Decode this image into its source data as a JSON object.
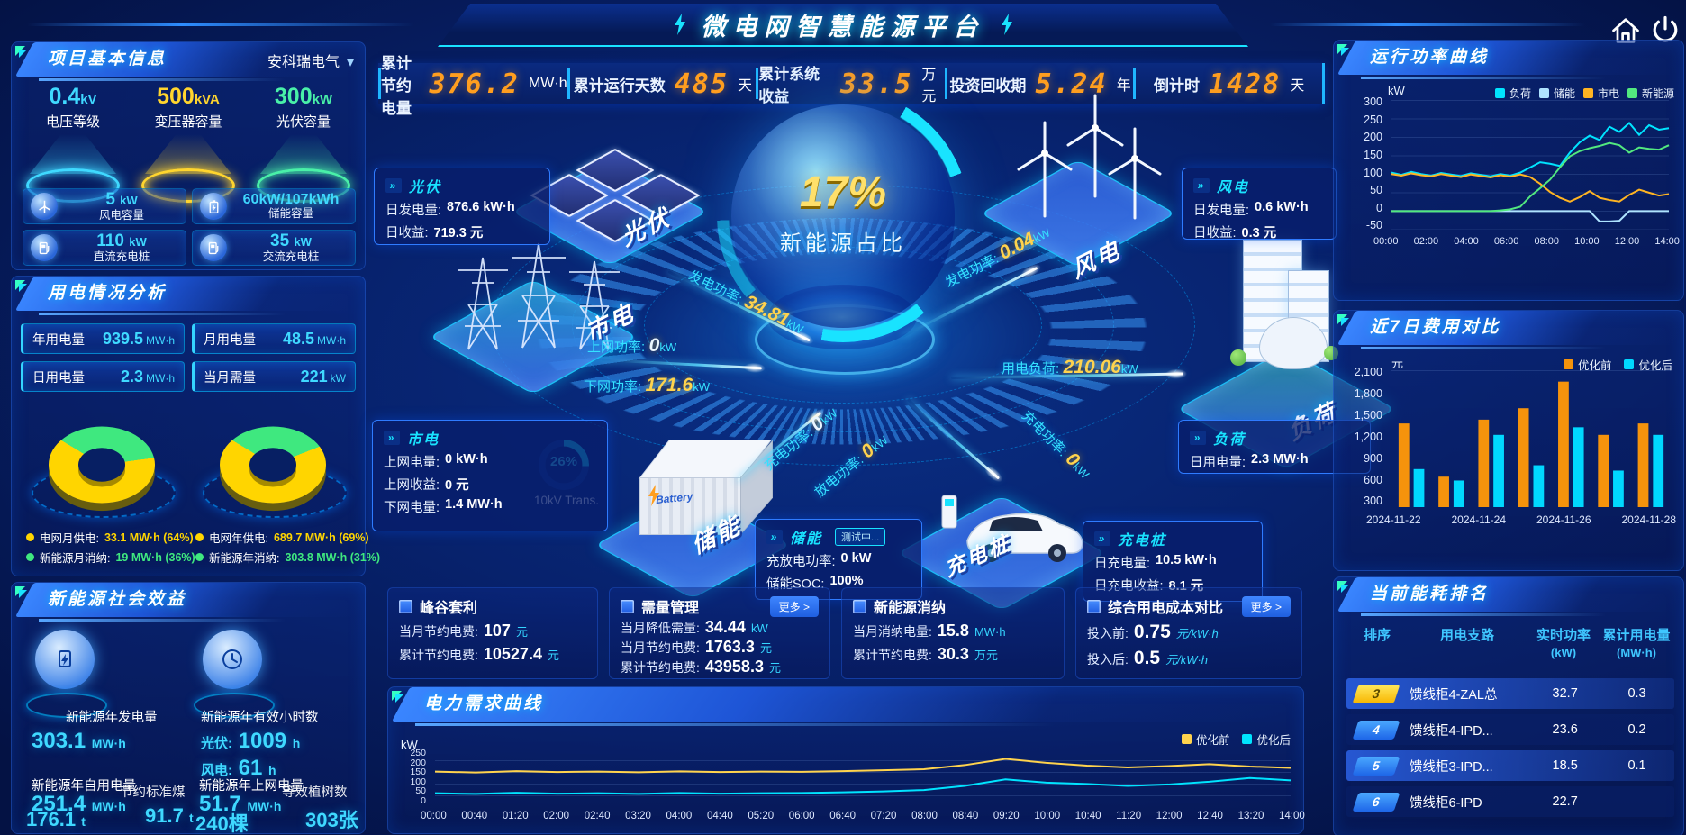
{
  "accent": {
    "cyan": "#19e3ff",
    "orange": "#ff9e1f",
    "yellow": "#ffd500",
    "green": "#3fe87f",
    "blue": "#2f7bff"
  },
  "header": {
    "title": "微电网智慧能源平台"
  },
  "kpis": [
    {
      "label": "累计节约电量",
      "value": "376.2",
      "unit": "MW·h"
    },
    {
      "label": "累计运行天数",
      "value": "485",
      "unit": "天"
    },
    {
      "label": "累计系统收益",
      "value": "33.5",
      "unit": "万元"
    },
    {
      "label": "投资回收期",
      "value": "5.24",
      "unit": "年"
    },
    {
      "label": "倒计时",
      "value": "1428",
      "unit": "天"
    }
  ],
  "project": {
    "title": "项目基本信息",
    "company": "安科瑞电气",
    "podiums": [
      {
        "value": "0.4",
        "unit": "kV",
        "label": "电压等级"
      },
      {
        "value": "500",
        "unit": "kVA",
        "label": "变压器容量"
      },
      {
        "value": "300",
        "unit": "kW",
        "label": "光伏容量"
      }
    ],
    "cards": [
      {
        "value": "5",
        "unit": "kW",
        "label": "风电容量"
      },
      {
        "value": "60kW/107kWh",
        "unit": "",
        "label": "储能容量"
      },
      {
        "value": "110",
        "unit": "kW",
        "label": "直流充电桩"
      },
      {
        "value": "35",
        "unit": "kW",
        "label": "交流充电桩"
      }
    ]
  },
  "usage": {
    "title": "用电情况分析",
    "stats": [
      {
        "label": "年用电量",
        "value": "939.5",
        "unit": "MW·h"
      },
      {
        "label": "月用电量",
        "value": "48.5",
        "unit": "MW·h"
      },
      {
        "label": "日用电量",
        "value": "2.3",
        "unit": "MW·h"
      },
      {
        "label": "当月需量",
        "value": "221",
        "unit": "kW"
      }
    ],
    "donuts": [
      {
        "legend": [
          {
            "label": "电网月供电:",
            "value": "33.1 MW·h (64%)",
            "color": "#ffd500",
            "pct": 64
          },
          {
            "label": "新能源月消纳:",
            "value": "19 MW·h (36%)",
            "color": "#3fe87f",
            "pct": 36
          }
        ]
      },
      {
        "legend": [
          {
            "label": "电网年供电:",
            "value": "689.7 MW·h (69%)",
            "color": "#ffd500",
            "pct": 69
          },
          {
            "label": "新能源年消纳:",
            "value": "303.8 MW·h (31%)",
            "color": "#3fe87f",
            "pct": 31
          }
        ]
      }
    ]
  },
  "benefit": {
    "title": "新能源社会效益",
    "gen_label": "新能源年发电量",
    "gen_value": "303.1",
    "gen_unit": "MW·h",
    "hours_label": "新能源年有效小时数",
    "pv_hours_label": "光伏:",
    "pv_hours": "1009",
    "pv_hours_unit": "h",
    "wind_hours_label": "风电:",
    "wind_hours": "61",
    "wind_hours_unit": "h",
    "self_label": "新能源年自用电量",
    "self_value": "251.4",
    "self_unit": "MW·h",
    "coal_label": "节约标准煤",
    "coal_value": "176.1",
    "coal_unit": "t",
    "co2_value": "91.7",
    "co2_unit": "t",
    "grid_label": "新能源年上网电量",
    "grid_value": "51.7",
    "grid_unit": "MW·h",
    "tree_label": "等效植树数",
    "tree_value": "240棵",
    "cert_value": "303张"
  },
  "scene": {
    "pct": "17%",
    "pct_label": "新能源占比",
    "nodes": {
      "pv": "光伏",
      "wind": "风电",
      "grid": "市电",
      "storage": "储能",
      "charger": "充电桩",
      "load": "负荷"
    },
    "flows": [
      {
        "label": "发电功率:",
        "value": "34.81",
        "unit": "kW"
      },
      {
        "label": "上网功率:",
        "value": "0",
        "unit": "kW"
      },
      {
        "label": "下网功率:",
        "value": "171.6",
        "unit": "kW"
      },
      {
        "label": "充电功率:",
        "value": "0",
        "unit": "kW"
      },
      {
        "label": "放电功率:",
        "value": "0",
        "unit": "kW"
      },
      {
        "label": "发电功率:",
        "value": "0.04",
        "unit": "kW"
      },
      {
        "label": "用电负荷:",
        "value": "210.06",
        "unit": "kW"
      },
      {
        "label": "充电功率:",
        "value": "0",
        "unit": "kW"
      }
    ],
    "transformer": {
      "pct": "26%",
      "label": "10kV Trans."
    },
    "boxes": {
      "pv": {
        "title": "光伏",
        "rows": [
          {
            "k": "日发电量:",
            "v": "876.6 kW·h"
          },
          {
            "k": "日收益:",
            "v": "719.3 元"
          }
        ]
      },
      "wind": {
        "title": "风电",
        "rows": [
          {
            "k": "日发电量:",
            "v": "0.6 kW·h"
          },
          {
            "k": "日收益:",
            "v": "0.3 元"
          }
        ]
      },
      "grid": {
        "title": "市电",
        "rows": [
          {
            "k": "上网电量:",
            "v": "0 kW·h"
          },
          {
            "k": "上网收益:",
            "v": "0 元"
          },
          {
            "k": "下网电量:",
            "v": "1.4 MW·h"
          }
        ]
      },
      "storage": {
        "title": "储能",
        "badge": "测试中...",
        "rows": [
          {
            "k": "充放电功率:",
            "v": "0 kW"
          },
          {
            "k": "储能SOC:",
            "v": "100%"
          }
        ]
      },
      "charger": {
        "title": "充电桩",
        "rows": [
          {
            "k": "日充电量:",
            "v": "10.5 kW·h"
          },
          {
            "k": "日充电收益:",
            "v": "8.1 元"
          }
        ]
      },
      "load": {
        "title": "负荷",
        "rows": [
          {
            "k": "日用电量:",
            "v": "2.3 MW·h"
          }
        ]
      }
    }
  },
  "panels": [
    {
      "title": "峰谷套利",
      "more": "",
      "rows": [
        {
          "k": "当月节约电费:",
          "v": "107",
          "u": "元"
        },
        {
          "k": "累计节约电费:",
          "v": "10527.4",
          "u": "元"
        }
      ]
    },
    {
      "title": "需量管理",
      "more": "更多 >",
      "rows": [
        {
          "k": "当月降低需量:",
          "v": "34.44",
          "u": "kW"
        },
        {
          "k": "当月节约电费:",
          "v": "1763.3",
          "u": "元"
        },
        {
          "k": "累计节约电费:",
          "v": "43958.3",
          "u": "元"
        }
      ]
    },
    {
      "title": "新能源消纳",
      "more": "",
      "rows": [
        {
          "k": "当月消纳电量:",
          "v": "15.8",
          "u": "MW·h"
        },
        {
          "k": "累计节约电费:",
          "v": "30.3",
          "u": "万元"
        }
      ]
    },
    {
      "title": "综合用电成本对比",
      "more": "更多 >",
      "rows": [
        {
          "k": "投入前:",
          "v": "0.75",
          "u": "元/kW·h"
        },
        {
          "k": "投入后:",
          "v": "0.5",
          "u": "元/kW·h"
        }
      ]
    }
  ],
  "right": {
    "run_title": "运行功率曲线",
    "cost_title": "近7日费用对比",
    "rank": {
      "title": "当前能耗排名",
      "columns": [
        {
          "t": "排序",
          "s": ""
        },
        {
          "t": "用电支路",
          "s": ""
        },
        {
          "t": "实时功率",
          "s": "(kW)"
        },
        {
          "t": "累计用电量",
          "s": "(MW·h)"
        }
      ],
      "rows": [
        {
          "rank": "3",
          "badge": "gold",
          "branch": "馈线柜4-ZAL总",
          "power": "32.7",
          "energy": "0.3"
        },
        {
          "rank": "4",
          "badge": "blue",
          "branch": "馈线柜4-IPD...",
          "power": "23.6",
          "energy": "0.2"
        },
        {
          "rank": "5",
          "badge": "blue",
          "branch": "馈线柜3-IPD...",
          "power": "18.5",
          "energy": "0.1"
        },
        {
          "rank": "6",
          "badge": "blue",
          "branch": "馈线柜6-IPD",
          "power": "22.7",
          "energy": ""
        }
      ]
    }
  },
  "demand_title": "电力需求曲线",
  "chart_data": [
    {
      "type": "line",
      "title": "运行功率曲线",
      "ylabel": "kW",
      "ylim": [
        -50,
        300
      ],
      "yticks": [
        "300",
        "250",
        "200",
        "150",
        "100",
        "50",
        "0",
        "-50"
      ],
      "x": [
        "00:00",
        "02:00",
        "04:00",
        "06:00",
        "08:00",
        "10:00",
        "12:00",
        "14:00"
      ],
      "legend_position": "top-right",
      "grid": true,
      "series": [
        {
          "name": "负荷",
          "color": "#00e4ff",
          "values": [
            104,
            98,
            106,
            100,
            96,
            103,
            99,
            95,
            102,
            98,
            94,
            100,
            96,
            104,
            118,
            132,
            128,
            122,
            158,
            186,
            204,
            192,
            228,
            214,
            238,
            206,
            232,
            220,
            224
          ]
        },
        {
          "name": "储能",
          "color": "#aee3ff",
          "values": [
            0,
            0,
            0,
            0,
            0,
            0,
            0,
            0,
            0,
            0,
            0,
            0,
            0,
            0,
            0,
            0,
            0,
            0,
            0,
            0,
            0,
            -28,
            -28,
            -26,
            0,
            0,
            0,
            0,
            0
          ]
        },
        {
          "name": "市电",
          "color": "#ffb422",
          "values": [
            100,
            96,
            102,
            97,
            94,
            100,
            96,
            92,
            99,
            95,
            91,
            97,
            93,
            99,
            92,
            74,
            52,
            36,
            26,
            38,
            54,
            36,
            30,
            26,
            44,
            58,
            50,
            42,
            46
          ]
        },
        {
          "name": "新能源",
          "color": "#52e87f",
          "values": [
            0,
            0,
            0,
            0,
            0,
            0,
            0,
            0,
            0,
            0,
            0,
            2,
            5,
            12,
            40,
            62,
            85,
            118,
            148,
            162,
            170,
            176,
            184,
            178,
            158,
            172,
            168,
            166,
            178
          ]
        }
      ]
    },
    {
      "type": "bar",
      "title": "近7日费用对比",
      "ylabel": "元",
      "ylim": [
        300,
        2100
      ],
      "yticks": [
        "2,100",
        "1,800",
        "1,500",
        "1,200",
        "900",
        "600",
        "300"
      ],
      "categories": [
        "2024-11-22",
        "2024-11-23",
        "2024-11-24",
        "2024-11-25",
        "2024-11-26",
        "2024-11-27",
        "2024-11-28"
      ],
      "xticks_shown": [
        "2024-11-22",
        "2024-11-24",
        "2024-11-26",
        "2024-11-28"
      ],
      "legend_position": "top-right",
      "grid": false,
      "series": [
        {
          "name": "优化前",
          "color": "#f5930c",
          "values": [
            1400,
            700,
            1450,
            1600,
            1950,
            1250,
            1400
          ]
        },
        {
          "name": "优化后",
          "color": "#00d8ff",
          "values": [
            800,
            650,
            1250,
            850,
            1350,
            780,
            1250
          ]
        }
      ]
    },
    {
      "type": "line",
      "title": "电力需求曲线",
      "ylabel": "kW",
      "ylim": [
        0,
        250
      ],
      "yticks": [
        "250",
        "200",
        "150",
        "100",
        "50",
        "0"
      ],
      "x": [
        "00:00",
        "00:40",
        "01:20",
        "02:00",
        "02:40",
        "03:20",
        "04:00",
        "04:40",
        "05:20",
        "06:00",
        "06:40",
        "07:20",
        "08:00",
        "08:40",
        "09:20",
        "10:00",
        "10:40",
        "11:20",
        "12:00",
        "12:40",
        "13:20",
        "14:00"
      ],
      "legend_position": "top-right",
      "grid": true,
      "series": [
        {
          "name": "优化前",
          "color": "#ffd34d",
          "values": [
            150,
            146,
            152,
            148,
            150,
            147,
            151,
            148,
            150,
            149,
            152,
            156,
            160,
            178,
            205,
            188,
            176,
            168,
            174,
            182,
            172,
            166
          ]
        },
        {
          "name": "优化后",
          "color": "#00e4ff",
          "values": [
            56,
            53,
            58,
            54,
            56,
            53,
            57,
            54,
            56,
            57,
            60,
            64,
            70,
            88,
            116,
            102,
            96,
            88,
            94,
            106,
            122,
            112
          ]
        }
      ]
    }
  ]
}
